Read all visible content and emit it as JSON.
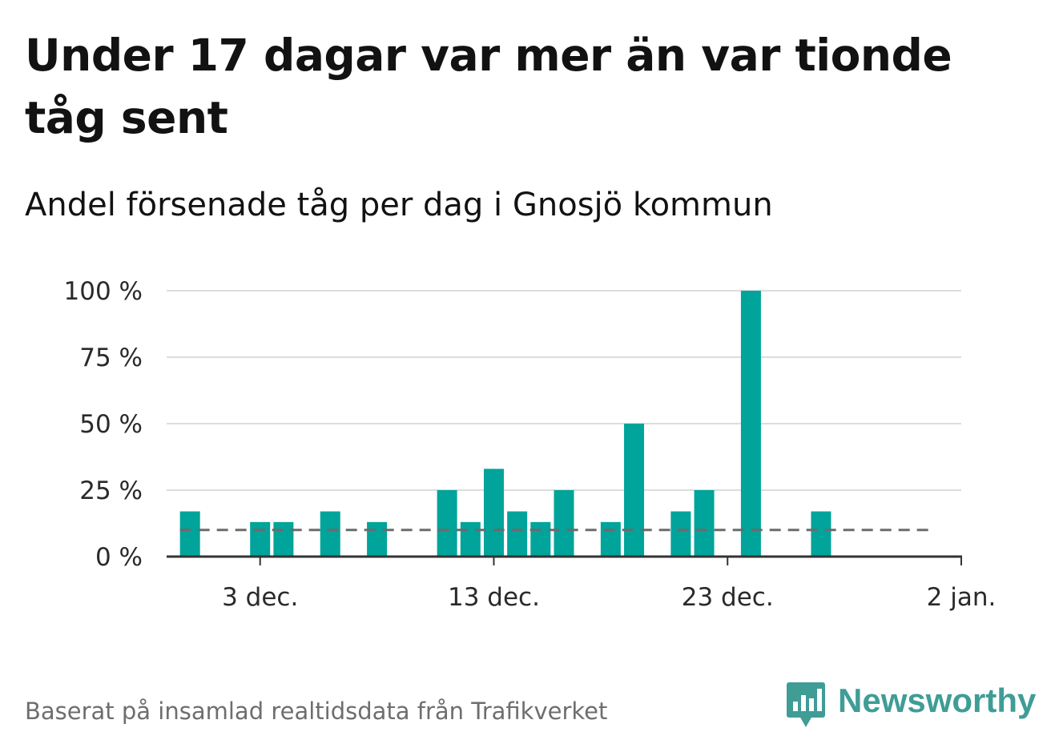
{
  "title": "Under 17 dagar var mer än var tionde tåg sent",
  "subtitle": "Andel försenade tåg per dag i Gnosjö kommun",
  "source": "Baserat på insamlad realtidsdata från Trafikverket",
  "brand": {
    "name": "Newsworthy"
  },
  "colors": {
    "bar": "#00a49a",
    "reference": "#6b6b6b",
    "grid": "#dddddd",
    "axis": "#333333"
  },
  "chart_data": {
    "type": "bar",
    "title": "Andel försenade tåg per dag i Gnosjö kommun",
    "xlabel": "",
    "ylabel": "",
    "x_axis": {
      "type": "date",
      "range": [
        "2022-11-29",
        "2023-01-02"
      ],
      "ticks": [
        "2022-12-03",
        "2022-12-13",
        "2022-12-23",
        "2023-01-02"
      ],
      "tick_labels": [
        "3 dec.",
        "13 dec.",
        "23 dec.",
        "2 jan."
      ]
    },
    "y_axis": {
      "range": [
        0,
        100
      ],
      "unit": "%",
      "ticks": [
        0,
        25,
        50,
        75,
        100
      ],
      "tick_labels": [
        "0 %",
        "25 %",
        "50 %",
        "75 %",
        "100 %"
      ]
    },
    "grid": true,
    "series": [
      {
        "values": [
          {
            "x": "2022-11-30",
            "y": 17
          },
          {
            "x": "2022-12-03",
            "y": 13
          },
          {
            "x": "2022-12-04",
            "y": 13
          },
          {
            "x": "2022-12-06",
            "y": 17
          },
          {
            "x": "2022-12-08",
            "y": 13
          },
          {
            "x": "2022-12-11",
            "y": 25
          },
          {
            "x": "2022-12-12",
            "y": 13
          },
          {
            "x": "2022-12-13",
            "y": 33
          },
          {
            "x": "2022-12-14",
            "y": 17
          },
          {
            "x": "2022-12-15",
            "y": 13
          },
          {
            "x": "2022-12-16",
            "y": 25
          },
          {
            "x": "2022-12-18",
            "y": 13
          },
          {
            "x": "2022-12-19",
            "y": 50
          },
          {
            "x": "2022-12-21",
            "y": 17
          },
          {
            "x": "2022-12-22",
            "y": 25
          },
          {
            "x": "2022-12-24",
            "y": 100
          },
          {
            "x": "2022-12-27",
            "y": 17
          }
        ]
      }
    ],
    "reference_line": {
      "y": 10,
      "style": "dashed",
      "x_range": [
        "2022-11-30",
        "2023-01-01"
      ]
    }
  }
}
